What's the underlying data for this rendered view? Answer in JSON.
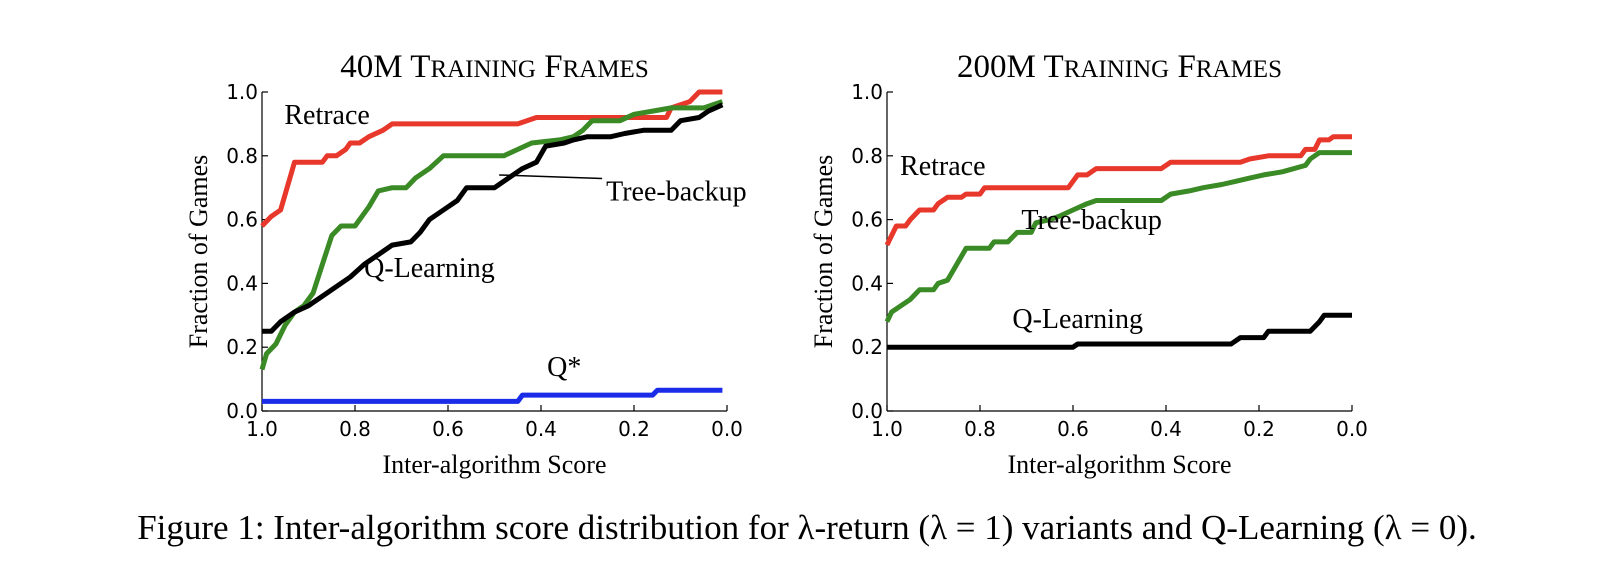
{
  "caption": "Figure 1: Inter-algorithm score distribution for λ-return (λ = 1) variants and Q-Learning (λ = 0).",
  "colors": {
    "retrace": "#e8372b",
    "tree_backup": "#3a8a26",
    "q_learning": "#000000",
    "q_star": "#1a2ce8"
  },
  "chart_data": [
    {
      "type": "line",
      "title": "40M Training Frames",
      "xlabel": "Inter-algorithm Score",
      "ylabel": "Fraction of Games",
      "xlim": [
        1.0,
        0.0
      ],
      "ylim": [
        0.0,
        1.0
      ],
      "x_reversed": true,
      "xticks": [
        "1.0",
        "0.8",
        "0.6",
        "0.4",
        "0.2",
        "0.0"
      ],
      "yticks": [
        "0.0",
        "0.2",
        "0.4",
        "0.6",
        "0.8",
        "1.0"
      ],
      "grid": false,
      "series": [
        {
          "name": "Retrace",
          "color_key": "retrace",
          "points": [
            [
              1.0,
              0.58
            ],
            [
              0.98,
              0.61
            ],
            [
              0.96,
              0.63
            ],
            [
              0.94,
              0.73
            ],
            [
              0.93,
              0.78
            ],
            [
              0.87,
              0.78
            ],
            [
              0.86,
              0.8
            ],
            [
              0.84,
              0.8
            ],
            [
              0.82,
              0.82
            ],
            [
              0.81,
              0.84
            ],
            [
              0.79,
              0.84
            ],
            [
              0.77,
              0.86
            ],
            [
              0.74,
              0.88
            ],
            [
              0.72,
              0.9
            ],
            [
              0.45,
              0.9
            ],
            [
              0.41,
              0.92
            ],
            [
              0.13,
              0.92
            ],
            [
              0.12,
              0.95
            ],
            [
              0.08,
              0.97
            ],
            [
              0.06,
              1.0
            ],
            [
              0.01,
              1.0
            ]
          ]
        },
        {
          "name": "Tree-backup",
          "color_key": "tree_backup",
          "points": [
            [
              1.0,
              0.13
            ],
            [
              0.99,
              0.18
            ],
            [
              0.97,
              0.21
            ],
            [
              0.95,
              0.27
            ],
            [
              0.93,
              0.31
            ],
            [
              0.91,
              0.33
            ],
            [
              0.89,
              0.37
            ],
            [
              0.87,
              0.46
            ],
            [
              0.85,
              0.55
            ],
            [
              0.83,
              0.58
            ],
            [
              0.8,
              0.58
            ],
            [
              0.77,
              0.64
            ],
            [
              0.75,
              0.69
            ],
            [
              0.72,
              0.7
            ],
            [
              0.69,
              0.7
            ],
            [
              0.67,
              0.73
            ],
            [
              0.64,
              0.76
            ],
            [
              0.61,
              0.8
            ],
            [
              0.48,
              0.8
            ],
            [
              0.45,
              0.82
            ],
            [
              0.42,
              0.84
            ],
            [
              0.36,
              0.85
            ],
            [
              0.33,
              0.86
            ],
            [
              0.31,
              0.88
            ],
            [
              0.29,
              0.91
            ],
            [
              0.23,
              0.91
            ],
            [
              0.2,
              0.93
            ],
            [
              0.16,
              0.94
            ],
            [
              0.12,
              0.95
            ],
            [
              0.05,
              0.95
            ],
            [
              0.03,
              0.96
            ],
            [
              0.01,
              0.97
            ]
          ]
        },
        {
          "name": "Q-Learning",
          "color_key": "q_learning",
          "points": [
            [
              1.0,
              0.25
            ],
            [
              0.98,
              0.25
            ],
            [
              0.96,
              0.28
            ],
            [
              0.93,
              0.31
            ],
            [
              0.9,
              0.33
            ],
            [
              0.87,
              0.36
            ],
            [
              0.84,
              0.39
            ],
            [
              0.81,
              0.42
            ],
            [
              0.78,
              0.46
            ],
            [
              0.75,
              0.49
            ],
            [
              0.72,
              0.52
            ],
            [
              0.68,
              0.53
            ],
            [
              0.66,
              0.56
            ],
            [
              0.64,
              0.6
            ],
            [
              0.61,
              0.63
            ],
            [
              0.58,
              0.66
            ],
            [
              0.56,
              0.7
            ],
            [
              0.5,
              0.7
            ],
            [
              0.47,
              0.73
            ],
            [
              0.44,
              0.76
            ],
            [
              0.41,
              0.78
            ],
            [
              0.39,
              0.83
            ],
            [
              0.35,
              0.84
            ],
            [
              0.33,
              0.85
            ],
            [
              0.3,
              0.86
            ],
            [
              0.25,
              0.86
            ],
            [
              0.22,
              0.87
            ],
            [
              0.18,
              0.88
            ],
            [
              0.12,
              0.88
            ],
            [
              0.1,
              0.91
            ],
            [
              0.06,
              0.92
            ],
            [
              0.04,
              0.94
            ],
            [
              0.01,
              0.96
            ]
          ]
        },
        {
          "name": "Q*",
          "color_key": "q_star",
          "points": [
            [
              1.0,
              0.03
            ],
            [
              0.45,
              0.03
            ],
            [
              0.44,
              0.05
            ],
            [
              0.16,
              0.05
            ],
            [
              0.15,
              0.065
            ],
            [
              0.01,
              0.065
            ]
          ]
        }
      ],
      "annotations": [
        {
          "text": "Retrace",
          "x": 0.86,
          "y": 0.9
        },
        {
          "text": "Tree-backup",
          "x": 0.26,
          "y": 0.66,
          "pointer_to": [
            0.49,
            0.74
          ]
        },
        {
          "text": "Q-Learning",
          "x": 0.64,
          "y": 0.42
        },
        {
          "text": "Q*",
          "x": 0.35,
          "y": 0.11
        }
      ]
    },
    {
      "type": "line",
      "title": "200M Training Frames",
      "xlabel": "Inter-algorithm Score",
      "ylabel": "Fraction of Games",
      "xlim": [
        1.0,
        0.0
      ],
      "ylim": [
        0.0,
        1.0
      ],
      "x_reversed": true,
      "xticks": [
        "1.0",
        "0.8",
        "0.6",
        "0.4",
        "0.2",
        "0.0"
      ],
      "yticks": [
        "0.0",
        "0.2",
        "0.4",
        "0.6",
        "0.8",
        "1.0"
      ],
      "grid": false,
      "series": [
        {
          "name": "Retrace",
          "color_key": "retrace",
          "points": [
            [
              1.0,
              0.52
            ],
            [
              0.99,
              0.55
            ],
            [
              0.98,
              0.58
            ],
            [
              0.96,
              0.58
            ],
            [
              0.95,
              0.6
            ],
            [
              0.93,
              0.63
            ],
            [
              0.9,
              0.63
            ],
            [
              0.89,
              0.65
            ],
            [
              0.87,
              0.67
            ],
            [
              0.84,
              0.67
            ],
            [
              0.83,
              0.68
            ],
            [
              0.8,
              0.68
            ],
            [
              0.79,
              0.7
            ],
            [
              0.61,
              0.7
            ],
            [
              0.59,
              0.74
            ],
            [
              0.57,
              0.74
            ],
            [
              0.55,
              0.76
            ],
            [
              0.41,
              0.76
            ],
            [
              0.39,
              0.78
            ],
            [
              0.24,
              0.78
            ],
            [
              0.22,
              0.79
            ],
            [
              0.18,
              0.8
            ],
            [
              0.11,
              0.8
            ],
            [
              0.1,
              0.82
            ],
            [
              0.08,
              0.82
            ],
            [
              0.07,
              0.85
            ],
            [
              0.05,
              0.85
            ],
            [
              0.04,
              0.86
            ],
            [
              0.0,
              0.86
            ]
          ]
        },
        {
          "name": "Tree-backup",
          "color_key": "tree_backup",
          "points": [
            [
              1.0,
              0.28
            ],
            [
              0.99,
              0.31
            ],
            [
              0.97,
              0.33
            ],
            [
              0.95,
              0.35
            ],
            [
              0.93,
              0.38
            ],
            [
              0.9,
              0.38
            ],
            [
              0.89,
              0.4
            ],
            [
              0.87,
              0.41
            ],
            [
              0.85,
              0.46
            ],
            [
              0.83,
              0.51
            ],
            [
              0.78,
              0.51
            ],
            [
              0.77,
              0.53
            ],
            [
              0.74,
              0.53
            ],
            [
              0.72,
              0.56
            ],
            [
              0.69,
              0.56
            ],
            [
              0.68,
              0.59
            ],
            [
              0.65,
              0.6
            ],
            [
              0.63,
              0.61
            ],
            [
              0.6,
              0.63
            ],
            [
              0.57,
              0.65
            ],
            [
              0.55,
              0.66
            ],
            [
              0.41,
              0.66
            ],
            [
              0.39,
              0.68
            ],
            [
              0.35,
              0.69
            ],
            [
              0.32,
              0.7
            ],
            [
              0.28,
              0.71
            ],
            [
              0.25,
              0.72
            ],
            [
              0.22,
              0.73
            ],
            [
              0.19,
              0.74
            ],
            [
              0.15,
              0.75
            ],
            [
              0.1,
              0.77
            ],
            [
              0.09,
              0.79
            ],
            [
              0.07,
              0.81
            ],
            [
              0.0,
              0.81
            ]
          ]
        },
        {
          "name": "Q-Learning",
          "color_key": "q_learning",
          "points": [
            [
              1.0,
              0.2
            ],
            [
              0.6,
              0.2
            ],
            [
              0.59,
              0.21
            ],
            [
              0.26,
              0.21
            ],
            [
              0.24,
              0.23
            ],
            [
              0.19,
              0.23
            ],
            [
              0.18,
              0.25
            ],
            [
              0.09,
              0.25
            ],
            [
              0.07,
              0.28
            ],
            [
              0.06,
              0.3
            ],
            [
              0.0,
              0.3
            ]
          ]
        }
      ],
      "annotations": [
        {
          "text": "Retrace",
          "x": 0.88,
          "y": 0.74
        },
        {
          "text": "Tree-backup",
          "x": 0.56,
          "y": 0.57
        },
        {
          "text": "Q-Learning",
          "x": 0.59,
          "y": 0.26
        }
      ]
    }
  ]
}
